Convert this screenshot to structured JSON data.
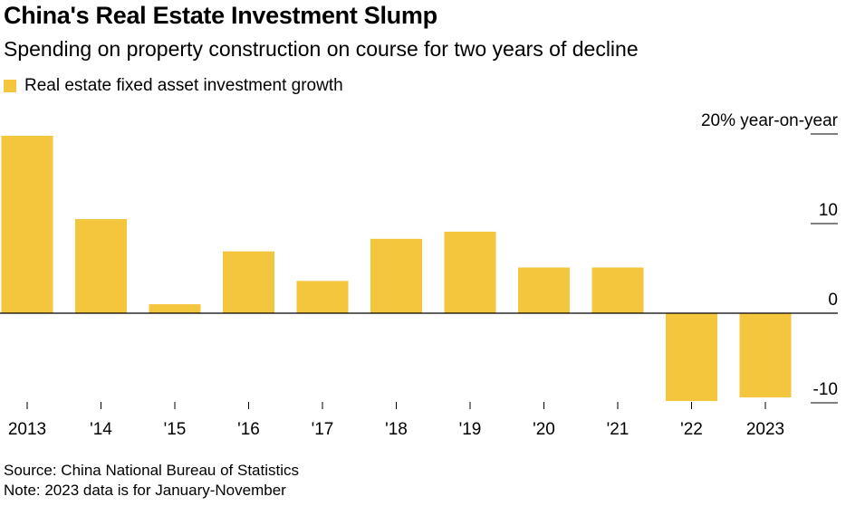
{
  "header": {
    "title": "China's Real Estate Investment Slump",
    "subtitle": "Spending on property construction on course for two years of decline"
  },
  "legend": {
    "label": "Real estate fixed asset investment growth"
  },
  "footer": {
    "source": "Source: China National Bureau of Statistics",
    "note": "Note: 2023 data is for January-November"
  },
  "colors": {
    "bar": "#f4c63d",
    "axis": "#000000",
    "gridline": "#000000",
    "text": "#000000"
  },
  "chart_data": {
    "type": "bar",
    "categories": [
      "2013",
      "'14",
      "'15",
      "'16",
      "'17",
      "'18",
      "'19",
      "'20",
      "'21",
      "'22",
      "2023"
    ],
    "series": [
      {
        "name": "Real estate fixed asset investment growth",
        "values": [
          19.8,
          10.5,
          1.0,
          6.9,
          3.6,
          8.3,
          9.1,
          5.1,
          5.1,
          -9.8,
          -9.4
        ]
      }
    ],
    "ylim": [
      -10,
      20
    ],
    "yticks": [
      {
        "value": 20,
        "label": "20% year-on-year"
      },
      {
        "value": 10,
        "label": "10"
      },
      {
        "value": 0,
        "label": "0"
      },
      {
        "value": -10,
        "label": "-10"
      }
    ],
    "ylabel": "",
    "xlabel": "",
    "grid": false,
    "legend_position": "top-left",
    "y_axis_side": "right"
  }
}
